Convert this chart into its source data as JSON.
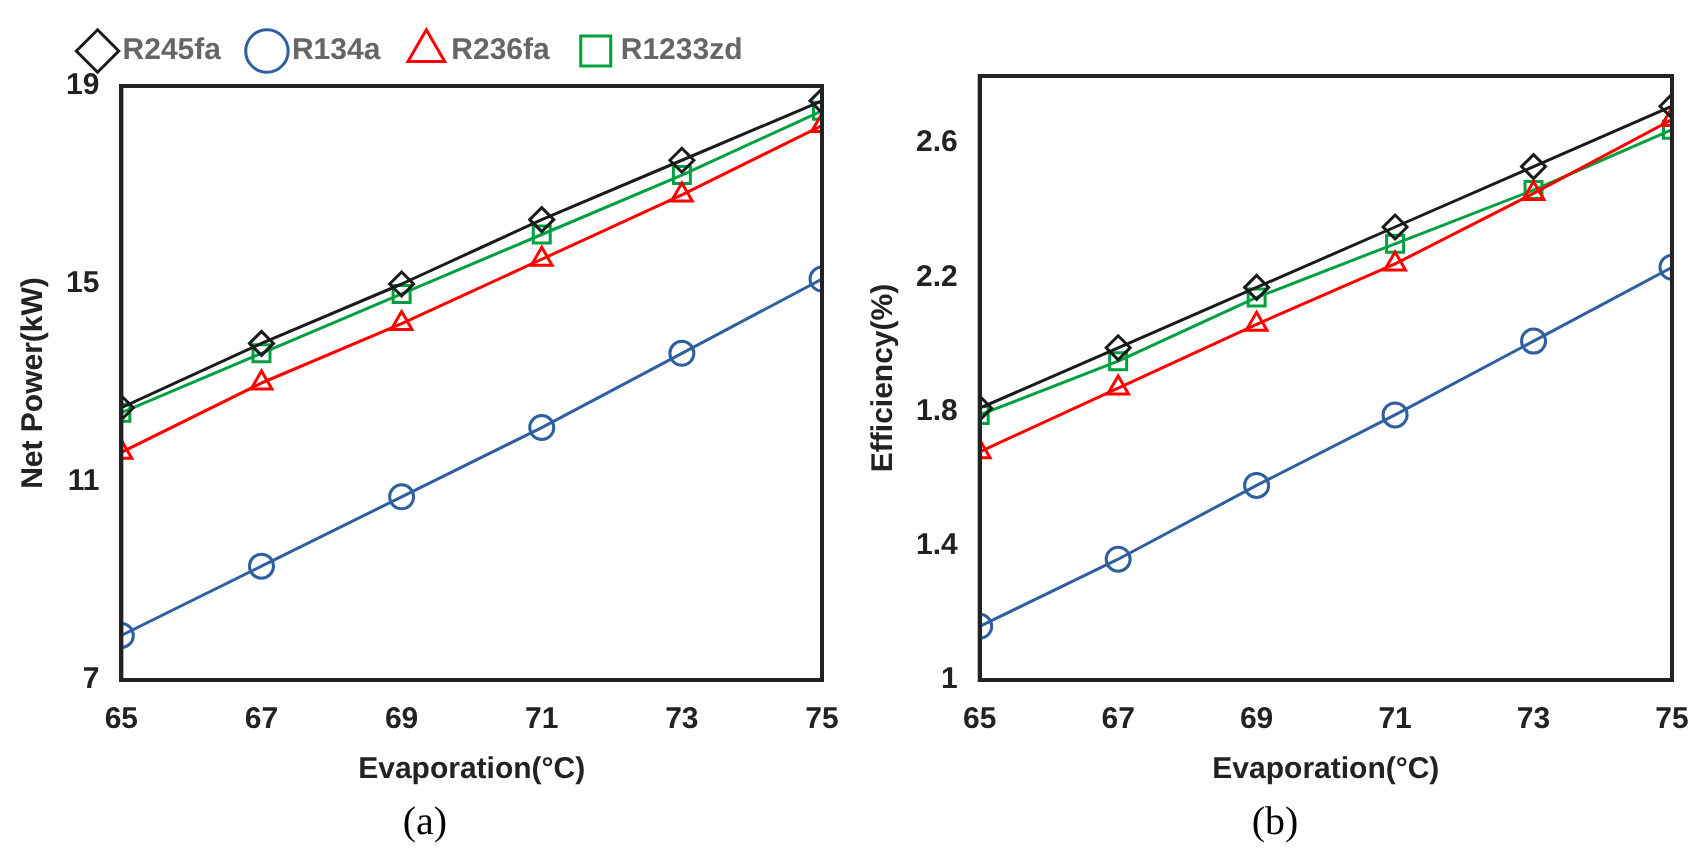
{
  "chart_data": [
    {
      "type": "line",
      "xlabel": "Evaporation(°C)",
      "ylabel": "Net Power(kW)",
      "x": [
        65,
        67,
        69,
        71,
        73,
        75
      ],
      "xlim": [
        65,
        75
      ],
      "xticks": [
        65,
        67,
        69,
        71,
        73,
        75
      ],
      "ylim": [
        7,
        19
      ],
      "yticks": [
        7,
        11,
        15,
        19
      ],
      "grid": false,
      "legend": "top",
      "annotations": [
        "(a)"
      ],
      "series": [
        {
          "name": "R245fa",
          "color": "#1a1a1a",
          "marker": "diamond",
          "values": [
            12.5,
            13.8,
            15.0,
            16.3,
            17.5,
            18.7
          ]
        },
        {
          "name": "R134a",
          "color": "#2e5fa0",
          "marker": "circle",
          "values": [
            7.9,
            9.3,
            10.7,
            12.1,
            13.6,
            15.1
          ]
        },
        {
          "name": "R236fa",
          "color": "#ff0000",
          "marker": "triangle",
          "values": [
            11.6,
            13.0,
            14.2,
            15.5,
            16.8,
            18.2
          ]
        },
        {
          "name": "R1233zd",
          "color": "#00a040",
          "marker": "square",
          "values": [
            12.4,
            13.6,
            14.8,
            16.0,
            17.2,
            18.5
          ]
        }
      ]
    },
    {
      "type": "line",
      "xlabel": "Evaporation(°C)",
      "ylabel": "Efficiency(%)",
      "x": [
        65,
        67,
        69,
        71,
        73,
        75
      ],
      "xlim": [
        65,
        75
      ],
      "xticks": [
        65,
        67,
        69,
        71,
        73,
        75
      ],
      "ylim": [
        1,
        2.8
      ],
      "yticks": [
        1,
        1.4,
        1.8,
        2.2,
        2.6
      ],
      "grid": false,
      "annotations": [
        "(b)"
      ],
      "series": [
        {
          "color": "#1a1a1a",
          "marker": "diamond",
          "values": [
            1.81,
            1.99,
            2.17,
            2.35,
            2.53,
            2.71
          ]
        },
        {
          "color": "#2e5fa0",
          "marker": "circle",
          "values": [
            1.16,
            1.36,
            1.58,
            1.79,
            2.01,
            2.23
          ]
        },
        {
          "color": "#ff0000",
          "marker": "triangle",
          "values": [
            1.68,
            1.87,
            2.06,
            2.24,
            2.45,
            2.67
          ]
        },
        {
          "color": "#00a040",
          "marker": "square",
          "values": [
            1.79,
            1.95,
            2.14,
            2.3,
            2.46,
            2.64
          ]
        }
      ]
    }
  ]
}
